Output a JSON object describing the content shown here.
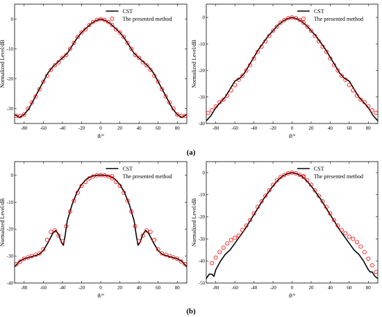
{
  "panel_labels": [
    "(a)",
    "(b)"
  ],
  "chart_data": [
    {
      "type": "line",
      "xlabel": "θ/°",
      "ylabel": "Normalized Level/dB",
      "xlim": [
        -90,
        90
      ],
      "ylim": [
        -35,
        5
      ],
      "xticks": [
        -80,
        -60,
        -40,
        -20,
        0,
        20,
        40,
        60,
        80
      ],
      "yticks": [
        0,
        -10,
        -20,
        -30
      ],
      "legend": [
        "CST",
        "The presented method"
      ],
      "legend_position": "top-right",
      "series": [
        {
          "name": "CST",
          "style": "line",
          "color": "#000000",
          "x": [
            -90,
            -85,
            -80,
            -75,
            -70,
            -65,
            -60,
            -55,
            -50,
            -45,
            -40,
            -35,
            -30,
            -25,
            -20,
            -15,
            -10,
            -5,
            0,
            5,
            10,
            15,
            20,
            25,
            30,
            35,
            40,
            45,
            50,
            55,
            60,
            65,
            70,
            75,
            80,
            85,
            90
          ],
          "y": [
            -32,
            -33,
            -32,
            -30,
            -27,
            -24,
            -21,
            -18,
            -16,
            -14.5,
            -13,
            -11.5,
            -9,
            -6.5,
            -4.5,
            -3,
            -1.5,
            -0.5,
            0,
            -0.5,
            -1.5,
            -3,
            -4.5,
            -6.5,
            -9,
            -11.5,
            -13,
            -14.5,
            -16,
            -18,
            -21,
            -24,
            -27,
            -30,
            -32,
            -33,
            -32
          ]
        },
        {
          "name": "The presented method",
          "style": "marker",
          "color": "#ff0000",
          "x": [
            -88,
            -84,
            -80,
            -76,
            -72,
            -68,
            -64,
            -60,
            -56,
            -52,
            -48,
            -44,
            -40,
            -36,
            -32,
            -28,
            -24,
            -20,
            -16,
            -12,
            -8,
            -4,
            0,
            4,
            8,
            12,
            16,
            20,
            24,
            28,
            32,
            36,
            40,
            44,
            48,
            52,
            56,
            60,
            64,
            68,
            72,
            76,
            80,
            84,
            88
          ],
          "y": [
            -32.5,
            -32.5,
            -32,
            -30,
            -28,
            -26,
            -23.5,
            -21,
            -19,
            -17,
            -15.5,
            -14.5,
            -13,
            -12,
            -10,
            -8,
            -6,
            -4.5,
            -3.5,
            -2,
            -1,
            -0.3,
            0,
            -0.3,
            -1,
            -2,
            -3.5,
            -4.5,
            -6,
            -8,
            -10,
            -12,
            -13,
            -14.5,
            -15.5,
            -17,
            -19,
            -21,
            -23.5,
            -26,
            -28,
            -30,
            -32,
            -32.5,
            -32.5
          ]
        }
      ]
    },
    {
      "type": "line",
      "xlabel": "θ/°",
      "ylabel": "Normalized Level/dB",
      "xlim": [
        -90,
        90
      ],
      "ylim": [
        -40,
        5
      ],
      "xticks": [
        -80,
        -60,
        -40,
        -20,
        0,
        20,
        40,
        60,
        80
      ],
      "yticks": [
        0,
        -10,
        -20,
        -30,
        -40
      ],
      "legend": [
        "CST",
        "The presented method"
      ],
      "legend_position": "top-right",
      "series": [
        {
          "name": "CST",
          "style": "line",
          "color": "#000000",
          "x": [
            -90,
            -85,
            -80,
            -75,
            -70,
            -65,
            -60,
            -55,
            -50,
            -45,
            -40,
            -35,
            -30,
            -25,
            -20,
            -15,
            -10,
            -5,
            0,
            5,
            10,
            15,
            20,
            25,
            30,
            35,
            40,
            45,
            50,
            55,
            60,
            65,
            70,
            75,
            80,
            85,
            90
          ],
          "y": [
            -39,
            -37,
            -34,
            -32,
            -30,
            -27,
            -24,
            -23,
            -21,
            -18,
            -15,
            -12,
            -9.5,
            -7,
            -5,
            -3,
            -1.5,
            -0.5,
            0,
            -0.5,
            -1.5,
            -3,
            -5,
            -7,
            -9.5,
            -12,
            -15,
            -18,
            -21,
            -23,
            -24,
            -27,
            -30,
            -32,
            -34,
            -37,
            -39
          ]
        },
        {
          "name": "The presented method",
          "style": "marker",
          "color": "#ff0000",
          "x": [
            -88,
            -84,
            -80,
            -76,
            -72,
            -68,
            -64,
            -60,
            -56,
            -52,
            -48,
            -44,
            -40,
            -36,
            -32,
            -28,
            -24,
            -20,
            -16,
            -12,
            -8,
            -4,
            0,
            4,
            8,
            12,
            16,
            20,
            24,
            28,
            32,
            36,
            40,
            44,
            48,
            52,
            56,
            60,
            64,
            68,
            72,
            76,
            80,
            84,
            88
          ],
          "y": [
            -36,
            -35,
            -33.5,
            -32,
            -31,
            -29.5,
            -27.5,
            -25.5,
            -23.5,
            -22,
            -20,
            -18,
            -15.5,
            -13,
            -11,
            -9,
            -7,
            -5,
            -3.5,
            -2,
            -1,
            -0.3,
            0,
            -0.3,
            -1,
            -2,
            -3.5,
            -5,
            -7,
            -9,
            -11,
            -13,
            -15.5,
            -18,
            -20,
            -22,
            -23.5,
            -25.5,
            -27.5,
            -29.5,
            -31,
            -32,
            -33.5,
            -35,
            -36
          ]
        }
      ]
    },
    {
      "type": "line",
      "xlabel": "θ/°",
      "ylabel": "Normalized Level/dB",
      "xlim": [
        -90,
        90
      ],
      "ylim": [
        -40,
        5
      ],
      "xticks": [
        -80,
        -60,
        -40,
        -20,
        0,
        20,
        40,
        60,
        80
      ],
      "yticks": [
        0,
        -10,
        -20,
        -30,
        -40
      ],
      "legend": [
        "CST",
        "The presented method"
      ],
      "legend_position": "top-right",
      "series": [
        {
          "name": "CST",
          "style": "line",
          "color": "#000000",
          "x": [
            -90,
            -85,
            -80,
            -75,
            -70,
            -65,
            -60,
            -55,
            -50,
            -47,
            -44,
            -41,
            -39,
            -37,
            -35,
            -30,
            -25,
            -20,
            -15,
            -10,
            -5,
            0,
            5,
            10,
            15,
            20,
            25,
            30,
            35,
            37,
            39,
            41,
            44,
            47,
            50,
            55,
            60,
            65,
            70,
            75,
            80,
            85,
            90
          ],
          "y": [
            -34,
            -32,
            -31,
            -30.5,
            -30,
            -29.5,
            -28,
            -25,
            -21.5,
            -20.5,
            -22,
            -25,
            -26,
            -22,
            -17,
            -11,
            -6.5,
            -3.5,
            -1.5,
            -0.5,
            -0.1,
            0,
            -0.1,
            -0.5,
            -1.5,
            -3.5,
            -6.5,
            -11,
            -17,
            -22,
            -26,
            -25,
            -22,
            -20.5,
            -21.5,
            -25,
            -28,
            -29.5,
            -30,
            -30.5,
            -31,
            -32,
            -34
          ]
        },
        {
          "name": "The presented method",
          "style": "marker",
          "color": "#ff0000",
          "x": [
            -88,
            -84,
            -80,
            -76,
            -72,
            -68,
            -64,
            -60,
            -56,
            -52,
            -48,
            -44,
            -40,
            -36,
            -32,
            -28,
            -24,
            -20,
            -16,
            -12,
            -8,
            -4,
            0,
            4,
            8,
            12,
            16,
            20,
            24,
            28,
            32,
            36,
            40,
            44,
            48,
            52,
            56,
            60,
            64,
            68,
            72,
            76,
            80,
            84,
            88
          ],
          "y": [
            -33,
            -32,
            -31,
            -30.5,
            -30,
            -29.5,
            -29,
            -27.5,
            -24,
            -21,
            -20.5,
            -22.5,
            -24.5,
            -19,
            -13.5,
            -9.5,
            -6.5,
            -4,
            -2.5,
            -1.2,
            -0.5,
            -0.1,
            0,
            -0.1,
            -0.5,
            -1.2,
            -2.5,
            -4,
            -6.5,
            -9.5,
            -13.5,
            -19,
            -24.5,
            -22.5,
            -20.5,
            -21,
            -24,
            -27.5,
            -29,
            -29.5,
            -30,
            -30.5,
            -31,
            -32,
            -33
          ]
        }
      ]
    },
    {
      "type": "line",
      "xlabel": "θ/°",
      "ylabel": "Normalized Level/dB",
      "xlim": [
        -90,
        90
      ],
      "ylim": [
        -50,
        5
      ],
      "xticks": [
        -80,
        -60,
        -40,
        -20,
        0,
        20,
        40,
        60,
        80
      ],
      "yticks": [
        0,
        -10,
        -20,
        -30,
        -40,
        -50
      ],
      "legend": [
        "CST",
        "The presented method"
      ],
      "legend_position": "top-right",
      "series": [
        {
          "name": "CST",
          "style": "line",
          "color": "#000000",
          "x": [
            -90,
            -87,
            -84,
            -82,
            -80,
            -75,
            -70,
            -65,
            -60,
            -55,
            -50,
            -45,
            -40,
            -35,
            -30,
            -25,
            -20,
            -15,
            -10,
            -5,
            0,
            5,
            10,
            15,
            20,
            25,
            30,
            35,
            40,
            45,
            50,
            55,
            60,
            65,
            70,
            75,
            80,
            82,
            84,
            87,
            90
          ],
          "y": [
            -48,
            -46,
            -46,
            -47,
            -44,
            -40,
            -37,
            -35,
            -32,
            -29,
            -26,
            -22.5,
            -19,
            -15.5,
            -12,
            -9,
            -6,
            -3.5,
            -1.5,
            -0.5,
            0,
            -0.5,
            -1.5,
            -3.5,
            -6,
            -9,
            -12,
            -15.5,
            -19,
            -22.5,
            -26,
            -29,
            -32,
            -35,
            -37,
            -40,
            -44,
            -45,
            -45,
            -47,
            -48
          ]
        },
        {
          "name": "The presented method",
          "style": "marker",
          "color": "#ff0000",
          "x": [
            -84,
            -80,
            -76,
            -72,
            -68,
            -64,
            -60,
            -56,
            -52,
            -48,
            -44,
            -40,
            -36,
            -32,
            -28,
            -24,
            -20,
            -16,
            -12,
            -8,
            -4,
            0,
            4,
            8,
            12,
            16,
            20,
            24,
            28,
            32,
            36,
            40,
            44,
            48,
            52,
            56,
            60,
            64,
            68,
            72,
            76,
            80,
            84,
            88
          ],
          "y": [
            -41,
            -38.5,
            -36,
            -34,
            -32,
            -30.5,
            -29.5,
            -28.5,
            -26,
            -24,
            -21.5,
            -18.5,
            -15.5,
            -13,
            -10.5,
            -8,
            -5.5,
            -3.5,
            -2,
            -1,
            -0.3,
            0,
            -0.3,
            -1,
            -2,
            -3.5,
            -5.5,
            -8,
            -10.5,
            -13,
            -15.5,
            -18.5,
            -21.5,
            -24,
            -26,
            -27.5,
            -29,
            -30,
            -31.5,
            -33.5,
            -36,
            -39,
            -42,
            -45
          ]
        }
      ]
    }
  ]
}
